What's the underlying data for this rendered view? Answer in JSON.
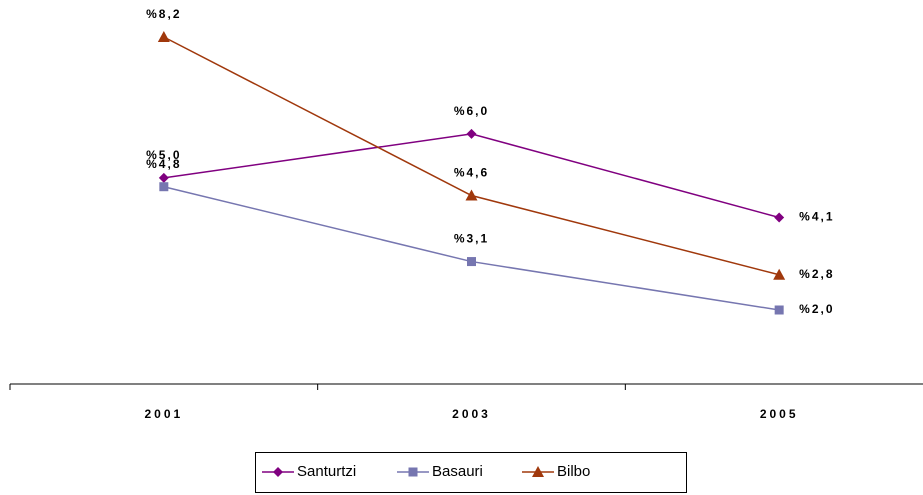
{
  "chart_data": {
    "type": "line",
    "categories": [
      "2001",
      "2003",
      "2005"
    ],
    "series": [
      {
        "name": "Santurtzi",
        "color": "#800080",
        "marker": "diamond",
        "values": [
          5.0,
          6.0,
          4.1
        ],
        "value_labels": [
          "%5,0",
          "%6,0",
          "%4,1"
        ]
      },
      {
        "name": "Basauri",
        "color": "#7676b0",
        "marker": "square",
        "values": [
          4.8,
          3.1,
          2.0
        ],
        "value_labels": [
          "%4,8",
          "%3,1",
          "%2,0"
        ]
      },
      {
        "name": "Bilbo",
        "color": "#a0380c",
        "marker": "triangle",
        "values": [
          8.2,
          4.6,
          2.8
        ],
        "value_labels": [
          "%8,2",
          "%4,6",
          "%2,8"
        ]
      }
    ],
    "legend": "bottom"
  }
}
